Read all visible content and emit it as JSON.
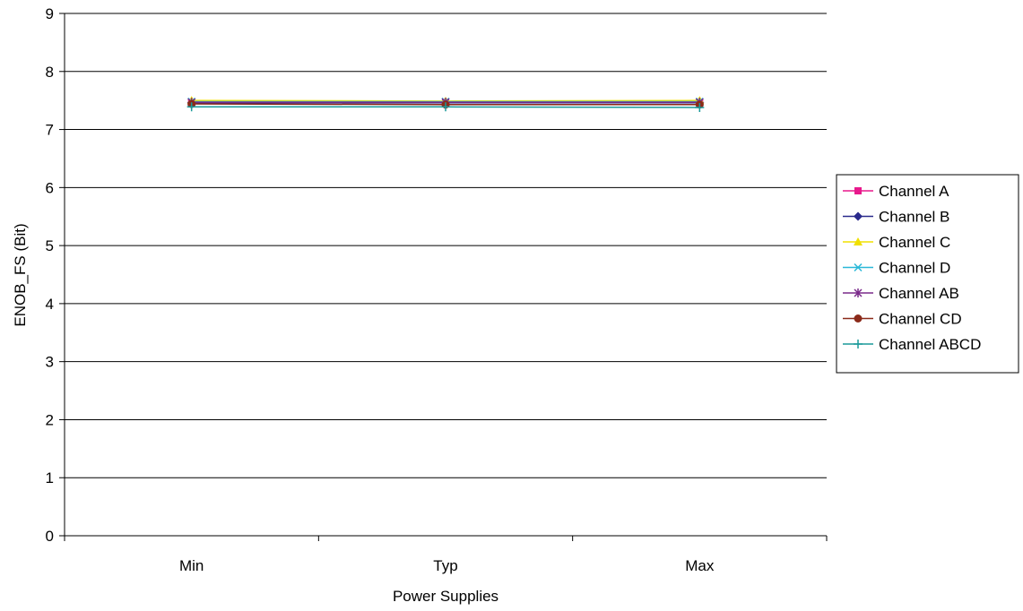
{
  "chart_data": {
    "type": "line",
    "title": "",
    "xlabel": "Power Supplies",
    "ylabel": "ENOB_FS (Bit)",
    "categories": [
      "Min",
      "Typ",
      "Max"
    ],
    "ylim": [
      0,
      9
    ],
    "yticks": [
      0,
      1,
      2,
      3,
      4,
      5,
      6,
      7,
      8,
      9
    ],
    "grid": true,
    "legend_position": "right",
    "series": [
      {
        "name": "Channel A",
        "values": [
          7.47,
          7.47,
          7.47
        ],
        "color": "#e8198c",
        "marker": "square"
      },
      {
        "name": "Channel B",
        "values": [
          7.46,
          7.46,
          7.46
        ],
        "color": "#2a2a8c",
        "marker": "diamond"
      },
      {
        "name": "Channel C",
        "values": [
          7.5,
          7.49,
          7.5
        ],
        "color": "#f0e000",
        "marker": "triangle"
      },
      {
        "name": "Channel D",
        "values": [
          7.48,
          7.48,
          7.48
        ],
        "color": "#2ab8d8",
        "marker": "x"
      },
      {
        "name": "Channel AB",
        "values": [
          7.47,
          7.47,
          7.47
        ],
        "color": "#7a2a8a",
        "marker": "star"
      },
      {
        "name": "Channel CD",
        "values": [
          7.44,
          7.43,
          7.43
        ],
        "color": "#8b2a1a",
        "marker": "circle"
      },
      {
        "name": "Channel ABCD",
        "values": [
          7.39,
          7.39,
          7.38
        ],
        "color": "#1a9a9a",
        "marker": "plus"
      }
    ]
  }
}
